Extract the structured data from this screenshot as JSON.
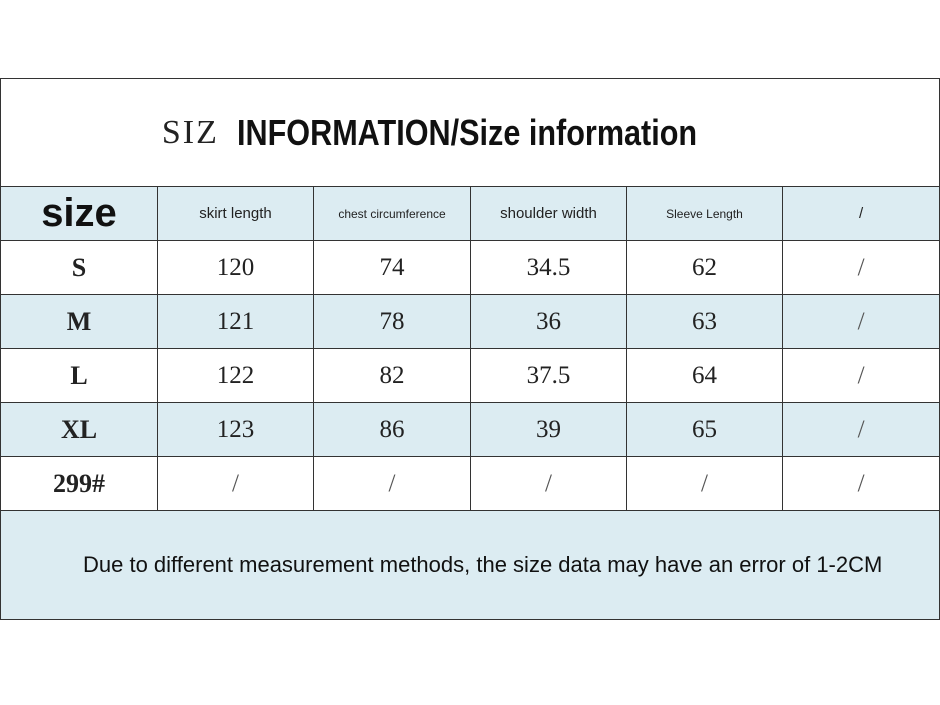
{
  "header": {
    "title_prefix": "SIZ",
    "title": "INFORMATION/Size information"
  },
  "table": {
    "columns": [
      "size",
      "skirt length",
      "chest circumference",
      "shoulder width",
      "Sleeve Length",
      "/"
    ],
    "rows": [
      [
        "S",
        120,
        74,
        34.5,
        62,
        "/"
      ],
      [
        "M",
        121,
        78,
        36,
        63,
        "/"
      ],
      [
        "L",
        122,
        82,
        37.5,
        64,
        "/"
      ],
      [
        "XL",
        123,
        86,
        39,
        65,
        "/"
      ],
      [
        "299#",
        "/",
        "/",
        "/",
        "/",
        "/"
      ]
    ]
  },
  "note": "Due to different measurement methods, the size data may have an error of 1-2CM"
}
